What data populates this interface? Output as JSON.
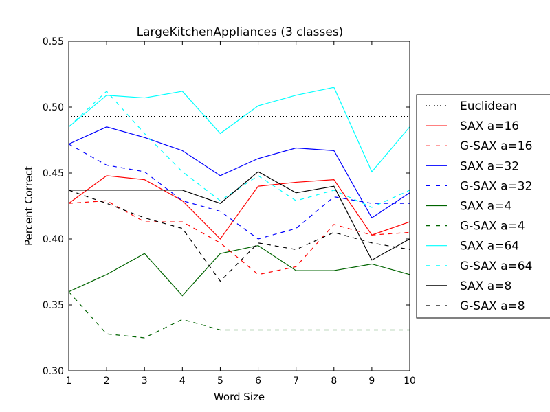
{
  "chart_data": {
    "type": "line",
    "title": "LargeKitchenAppliances (3 classes)",
    "xlabel": "Word Size",
    "ylabel": "Percent Correct",
    "xlim": [
      1,
      10
    ],
    "ylim": [
      0.3,
      0.55
    ],
    "xticks": [
      "1",
      "2",
      "3",
      "4",
      "5",
      "6",
      "7",
      "8",
      "9",
      "10"
    ],
    "yticks": [
      "0.30",
      "0.35",
      "0.40",
      "0.45",
      "0.50",
      "0.55"
    ],
    "x": [
      1,
      2,
      3,
      4,
      5,
      6,
      7,
      8,
      9,
      10
    ],
    "legend_position": "right, outside plot",
    "grid": false,
    "baseline": {
      "name": "Euclidean",
      "value": 0.493,
      "color": "#000000",
      "style": "dotted"
    },
    "series": [
      {
        "name": "SAX a=16",
        "color": "#ff0000",
        "style": "solid",
        "values": [
          0.427,
          0.448,
          0.445,
          0.429,
          0.4,
          0.44,
          0.443,
          0.445,
          0.403,
          0.413
        ]
      },
      {
        "name": "G-SAX a=16",
        "color": "#ff0000",
        "style": "dashed",
        "values": [
          0.427,
          0.429,
          0.413,
          0.413,
          0.397,
          0.373,
          0.379,
          0.411,
          0.403,
          0.405
        ]
      },
      {
        "name": "SAX a=32",
        "color": "#0000ff",
        "style": "solid",
        "values": [
          0.472,
          0.485,
          0.477,
          0.467,
          0.448,
          0.461,
          0.469,
          0.467,
          0.416,
          0.435
        ]
      },
      {
        "name": "G-SAX a=32",
        "color": "#0000ff",
        "style": "dashed",
        "values": [
          0.472,
          0.456,
          0.451,
          0.429,
          0.421,
          0.4,
          0.408,
          0.432,
          0.427,
          0.427
        ]
      },
      {
        "name": "SAX a=4",
        "color": "#006400",
        "style": "solid",
        "values": [
          0.36,
          0.373,
          0.389,
          0.357,
          0.389,
          0.395,
          0.376,
          0.376,
          0.381,
          0.373
        ]
      },
      {
        "name": "G-SAX a=4",
        "color": "#006400",
        "style": "dashed",
        "values": [
          0.36,
          0.328,
          0.325,
          0.339,
          0.331,
          0.331,
          0.331,
          0.331,
          0.331,
          0.331
        ]
      },
      {
        "name": "SAX a=64",
        "color": "#00ffff",
        "style": "solid",
        "values": [
          0.485,
          0.509,
          0.507,
          0.512,
          0.48,
          0.501,
          0.509,
          0.515,
          0.451,
          0.485
        ]
      },
      {
        "name": "G-SAX a=64",
        "color": "#00ffff",
        "style": "dashed",
        "values": [
          0.485,
          0.512,
          0.48,
          0.451,
          0.429,
          0.448,
          0.429,
          0.437,
          0.424,
          0.437
        ]
      },
      {
        "name": "SAX a=8",
        "color": "#000000",
        "style": "solid",
        "values": [
          0.437,
          0.437,
          0.437,
          0.437,
          0.427,
          0.451,
          0.435,
          0.44,
          0.384,
          0.4
        ]
      },
      {
        "name": "G-SAX a=8",
        "color": "#000000",
        "style": "dashed",
        "values": [
          0.437,
          0.427,
          0.416,
          0.408,
          0.368,
          0.397,
          0.392,
          0.405,
          0.397,
          0.392
        ]
      }
    ]
  }
}
